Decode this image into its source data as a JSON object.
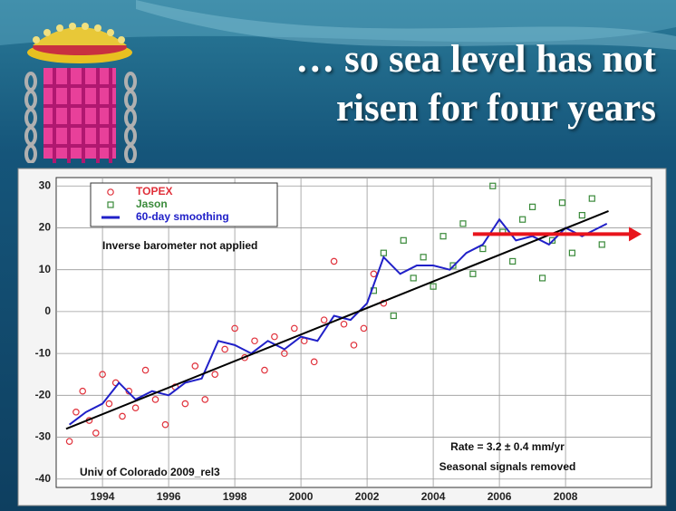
{
  "title_lines": [
    "… so sea level has not",
    "risen for four years"
  ],
  "chart_data": {
    "type": "scatter",
    "xlim": [
      1992.6,
      2010.6
    ],
    "ylim": [
      -42,
      32
    ],
    "xticks": [
      1994,
      1996,
      1998,
      2000,
      2002,
      2004,
      2006,
      2008
    ],
    "yticks": [
      30,
      20,
      10,
      0,
      -10,
      -20,
      -30,
      -40
    ],
    "grid": true,
    "series": [
      {
        "name": "TOPEX",
        "color": "#e0303a",
        "marker": "circle",
        "x": [
          1993.0,
          1993.2,
          1993.4,
          1993.6,
          1993.8,
          1994.0,
          1994.2,
          1994.4,
          1994.6,
          1994.8,
          1995.0,
          1995.3,
          1995.6,
          1995.9,
          1996.2,
          1996.5,
          1996.8,
          1997.1,
          1997.4,
          1997.7,
          1998.0,
          1998.3,
          1998.6,
          1998.9,
          1999.2,
          1999.5,
          1999.8,
          2000.1,
          2000.4,
          2000.7,
          2001.0,
          2001.3,
          2001.6,
          2001.9,
          2002.2,
          2002.5
        ],
        "values": [
          -31,
          -24,
          -19,
          -26,
          -29,
          -15,
          -22,
          -17,
          -25,
          -19,
          -23,
          -14,
          -21,
          -27,
          -18,
          -22,
          -13,
          -21,
          -15,
          -9,
          -4,
          -11,
          -7,
          -14,
          -6,
          -10,
          -4,
          -7,
          -12,
          -2,
          12,
          -3,
          -8,
          -4,
          9,
          2
        ]
      },
      {
        "name": "Jason",
        "color": "#3a8a3a",
        "marker": "square",
        "x": [
          2002.2,
          2002.5,
          2002.8,
          2003.1,
          2003.4,
          2003.7,
          2004.0,
          2004.3,
          2004.6,
          2004.9,
          2005.2,
          2005.5,
          2005.8,
          2006.1,
          2006.4,
          2006.7,
          2007.0,
          2007.3,
          2007.6,
          2007.9,
          2008.2,
          2008.5,
          2008.8,
          2009.1
        ],
        "values": [
          5,
          14,
          -1,
          17,
          8,
          13,
          6,
          18,
          11,
          21,
          9,
          15,
          30,
          19,
          12,
          22,
          25,
          8,
          17,
          26,
          14,
          23,
          27,
          16
        ]
      },
      {
        "name": "60-day smoothing",
        "color": "#2020c8",
        "marker": "line",
        "x": [
          1993.0,
          1993.5,
          1994.0,
          1994.5,
          1995.0,
          1995.5,
          1996.0,
          1996.5,
          1997.0,
          1997.5,
          1998.0,
          1998.5,
          1999.0,
          1999.5,
          2000.0,
          2000.5,
          2001.0,
          2001.5,
          2002.0,
          2002.5,
          2003.0,
          2003.5,
          2004.0,
          2004.5,
          2005.0,
          2005.5,
          2006.0,
          2006.5,
          2007.0,
          2007.5,
          2008.0,
          2008.5,
          2009.0,
          2009.25
        ],
        "values": [
          -27,
          -24,
          -22,
          -17,
          -21,
          -19,
          -20,
          -17,
          -16,
          -7,
          -8,
          -10,
          -7,
          -9,
          -6,
          -7,
          -1,
          -2,
          2,
          13,
          9,
          11,
          11,
          10,
          14,
          16,
          22,
          17,
          18,
          16,
          20,
          18,
          20,
          21
        ]
      }
    ],
    "trend_line": {
      "color": "#000000",
      "x": [
        1992.9,
        2009.3
      ],
      "values": [
        -28,
        24
      ]
    },
    "arrow": {
      "color": "#e8141c",
      "x": [
        2005.2,
        2010.3
      ],
      "values": [
        18.5,
        18.5
      ]
    },
    "annotations": [
      "Inverse barometer not applied",
      "Rate = 3.2 ± 0.4 mm/yr",
      "Seasonal signals removed",
      "Univ of Colorado 2009_rel3"
    ]
  }
}
